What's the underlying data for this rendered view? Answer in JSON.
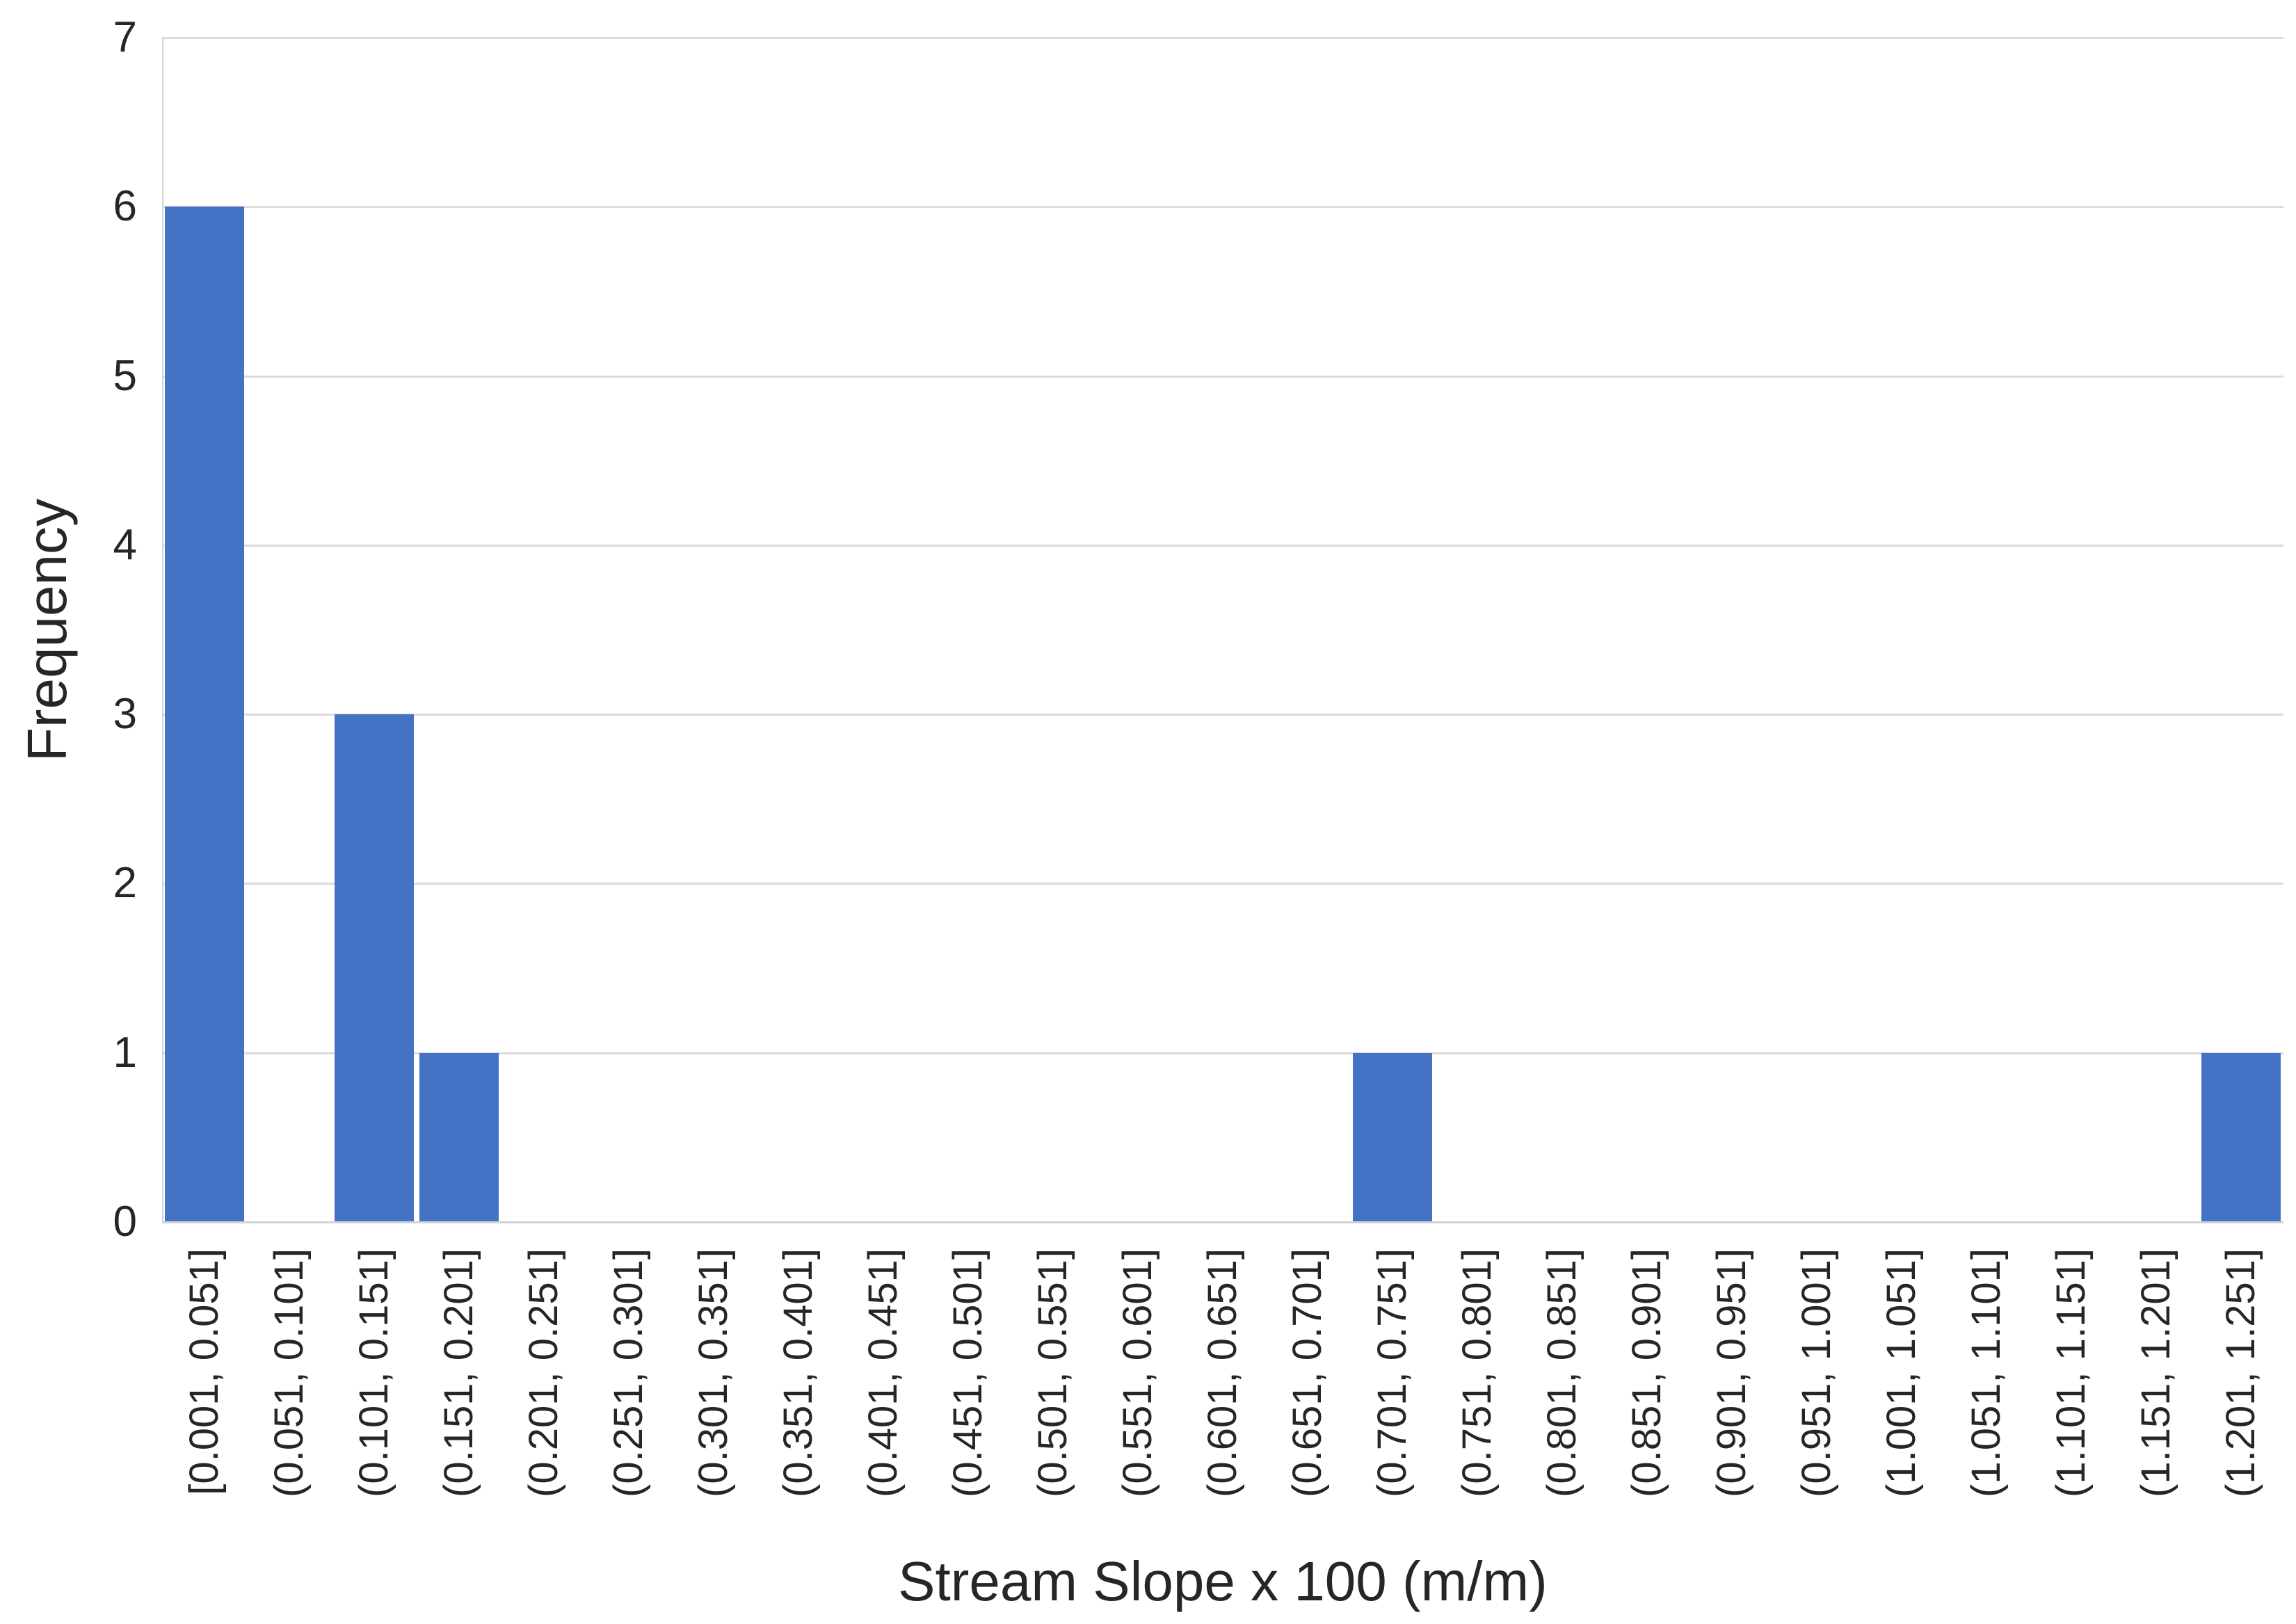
{
  "chart_data": {
    "type": "bar",
    "title": "",
    "xlabel": "Stream Slope x 100 (m/m)",
    "ylabel": "Frequency",
    "categories": [
      "[0.001, 0.051]",
      "(0.051, 0.101]",
      "(0.101, 0.151]",
      "(0.151, 0.201]",
      "(0.201, 0.251]",
      "(0.251, 0.301]",
      "(0.301, 0.351]",
      "(0.351, 0.401]",
      "(0.401, 0.451]",
      "(0.451, 0.501]",
      "(0.501, 0.551]",
      "(0.551, 0.601]",
      "(0.601, 0.651]",
      "(0.651, 0.701]",
      "(0.701, 0.751]",
      "(0.751, 0.801]",
      "(0.801, 0.851]",
      "(0.851, 0.901]",
      "(0.901, 0.951]",
      "(0.951, 1.001]",
      "(1.001, 1.051]",
      "(1.051, 1.101]",
      "(1.101, 1.151]",
      "(1.151, 1.201]",
      "(1.201, 1.251]"
    ],
    "values": [
      6,
      0,
      3,
      1,
      0,
      0,
      0,
      0,
      0,
      0,
      0,
      0,
      0,
      0,
      1,
      0,
      0,
      0,
      0,
      0,
      0,
      0,
      0,
      0,
      1
    ],
    "ylim": [
      0,
      7
    ],
    "yticks": [
      0,
      1,
      2,
      3,
      4,
      5,
      6,
      7
    ],
    "grid": true,
    "legend_position": "none",
    "colors": {
      "bar": "#4472C4",
      "gridline": "#DCDCDC",
      "axis_line": "#D2D2D2",
      "text": "#262626",
      "background": "#FFFFFF"
    }
  }
}
